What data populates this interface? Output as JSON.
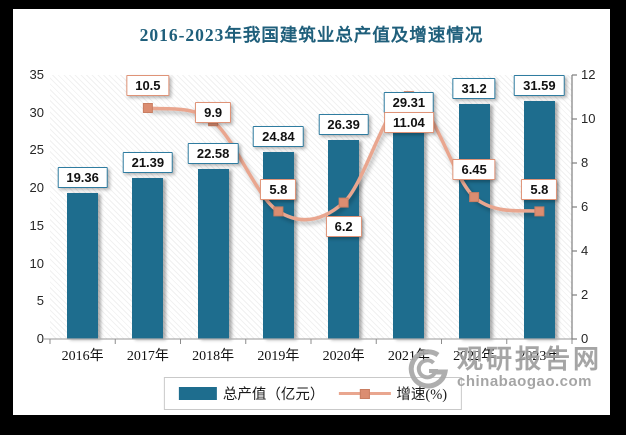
{
  "title": "2016-2023年我国建筑业总产值及增速情况",
  "legend": {
    "position": "bottom-center",
    "items": [
      {
        "label": "总产值（亿元）",
        "symbol": "bar-swatch"
      },
      {
        "label": "增速(%)",
        "symbol": "line-with-square-marker"
      }
    ]
  },
  "watermark": {
    "logo": "spiral-g-logo",
    "site_name": "观研报告网",
    "site_url": "chinabaogao.com"
  },
  "colors": {
    "bar": "#1E6D8E",
    "bar_label_border": "#2F7CA0",
    "line": "#E9A68F",
    "line_marker": "#DB8D71",
    "line_marker_stroke": "#C97E62",
    "line_label_border": "#DF9377",
    "title_text": "#1F5F7B",
    "axis_text": "#262626",
    "baseline": "#ADADAD",
    "right_axis_line": "#7F7F7F",
    "frame": "#000000",
    "panel": "#FFFFFF",
    "watermark": "#9E9E9E",
    "legend_border": "#C9C9C9"
  },
  "chart_data": {
    "type": "bar+line",
    "title": "2016-2023年我国建筑业总产值及增速情况",
    "categories": [
      "2016年",
      "2017年",
      "2018年",
      "2019年",
      "2020年",
      "2021年",
      "2022年",
      "2023年"
    ],
    "series": [
      {
        "name": "总产值（亿元）",
        "type": "bar",
        "y_axis": "left",
        "values": [
          19.36,
          21.39,
          22.58,
          24.84,
          26.39,
          29.31,
          31.2,
          31.59
        ]
      },
      {
        "name": "增速(%)",
        "type": "line",
        "y_axis": "right",
        "values": [
          null,
          10.5,
          9.9,
          5.8,
          6.2,
          11.04,
          6.45,
          5.8
        ]
      }
    ],
    "left_axis": {
      "min": 0,
      "max": 35,
      "step": 5
    },
    "right_axis": {
      "min": 0,
      "max": 12,
      "step": 2
    },
    "grid": "diagonal-hatch-plot-background, no gridlines",
    "legend_position": "bottom-center",
    "data_labels": "all points labeled in bordered boxes",
    "line_label_placement": [
      null,
      "above",
      "above",
      "above",
      "below",
      "below",
      "above",
      "above"
    ]
  }
}
